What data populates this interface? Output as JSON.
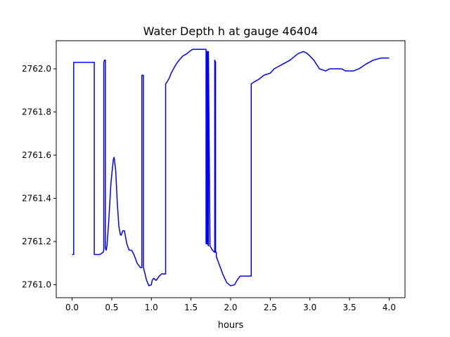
{
  "chart_data": {
    "type": "line",
    "title": "Water Depth h at gauge 46404",
    "xlabel": "hours",
    "ylabel": "",
    "xlim": [
      -0.2,
      4.2
    ],
    "ylim": [
      2760.94,
      2762.13
    ],
    "x_ticks": [
      0.0,
      0.5,
      1.0,
      1.5,
      2.0,
      2.5,
      3.0,
      3.5,
      4.0
    ],
    "x_tick_labels": [
      "0.0",
      "0.5",
      "1.0",
      "1.5",
      "2.0",
      "2.5",
      "3.0",
      "3.5",
      "4.0"
    ],
    "y_ticks": [
      2761.0,
      2761.2,
      2761.4,
      2761.6,
      2761.8,
      2762.0
    ],
    "y_tick_labels": [
      "2761.0",
      "2761.2",
      "2761.4",
      "2761.6",
      "2761.8",
      "2762.0"
    ],
    "grid": false,
    "colors": {
      "line": "#0000ff",
      "axes": "#000000",
      "background": "#ffffff"
    },
    "series": [
      {
        "x": [
          0.0,
          0.02,
          0.02,
          0.27,
          0.28,
          0.28,
          0.3,
          0.35,
          0.39,
          0.4,
          0.4,
          0.41,
          0.42,
          0.42,
          0.43,
          0.44,
          0.46,
          0.49,
          0.52,
          0.53,
          0.55,
          0.57,
          0.59,
          0.61,
          0.62,
          0.64,
          0.66,
          0.67,
          0.69,
          0.72,
          0.75,
          0.78,
          0.82,
          0.86,
          0.88,
          0.88,
          0.9,
          0.9,
          0.92,
          0.94,
          0.97,
          1.0,
          1.01,
          1.03,
          1.06,
          1.08,
          1.1,
          1.13,
          1.15,
          1.17,
          1.18,
          1.18,
          1.2,
          1.23,
          1.25,
          1.28,
          1.31,
          1.35,
          1.4,
          1.45,
          1.48,
          1.52,
          1.56,
          1.6,
          1.63,
          1.68,
          1.69,
          1.69,
          1.7,
          1.7,
          1.71,
          1.71,
          1.72,
          1.72,
          1.74,
          1.77,
          1.8,
          1.8,
          1.81,
          1.81,
          1.82,
          1.82,
          1.86,
          1.9,
          1.95,
          2.0,
          2.05,
          2.08,
          2.12,
          2.16,
          2.2,
          2.25,
          2.26,
          2.26,
          2.3,
          2.35,
          2.42,
          2.5,
          2.55,
          2.65,
          2.75,
          2.85,
          2.92,
          2.97,
          3.05,
          3.12,
          3.2,
          3.25,
          3.3,
          3.35,
          3.4,
          3.45,
          3.5,
          3.55,
          3.62,
          3.7,
          3.8,
          3.9,
          4.0
        ],
        "y": [
          2761.14,
          2761.14,
          2762.03,
          2762.03,
          2762.03,
          2761.14,
          2761.14,
          2761.14,
          2761.15,
          2761.16,
          2762.03,
          2762.04,
          2762.04,
          2761.17,
          2761.16,
          2761.18,
          2761.28,
          2761.47,
          2761.58,
          2761.59,
          2761.53,
          2761.38,
          2761.27,
          2761.23,
          2761.23,
          2761.25,
          2761.25,
          2761.23,
          2761.19,
          2761.16,
          2761.16,
          2761.14,
          2761.1,
          2761.08,
          2761.08,
          2761.97,
          2761.97,
          2761.08,
          2761.05,
          2761.02,
          2760.995,
          2761.0,
          2761.02,
          2761.03,
          2761.02,
          2761.03,
          2761.04,
          2761.05,
          2761.05,
          2761.05,
          2761.05,
          2761.93,
          2761.94,
          2761.96,
          2761.98,
          2762.0,
          2762.02,
          2762.04,
          2762.06,
          2762.07,
          2762.08,
          2762.09,
          2762.09,
          2762.09,
          2762.09,
          2762.09,
          2762.09,
          2761.19,
          2761.19,
          2762.08,
          2762.08,
          2761.19,
          2761.18,
          2762.08,
          2761.18,
          2761.16,
          2761.15,
          2762.04,
          2762.03,
          2761.15,
          2761.15,
          2761.13,
          2761.09,
          2761.05,
          2761.01,
          2760.995,
          2761.0,
          2761.02,
          2761.04,
          2761.04,
          2761.04,
          2761.04,
          2761.04,
          2761.93,
          2761.94,
          2761.95,
          2761.97,
          2761.98,
          2762.0,
          2762.02,
          2762.04,
          2762.07,
          2762.08,
          2762.07,
          2762.04,
          2762.0,
          2761.99,
          2762.0,
          2762.0,
          2762.0,
          2762.0,
          2761.99,
          2761.99,
          2761.99,
          2762.0,
          2762.02,
          2762.04,
          2762.05,
          2762.05
        ]
      }
    ]
  }
}
